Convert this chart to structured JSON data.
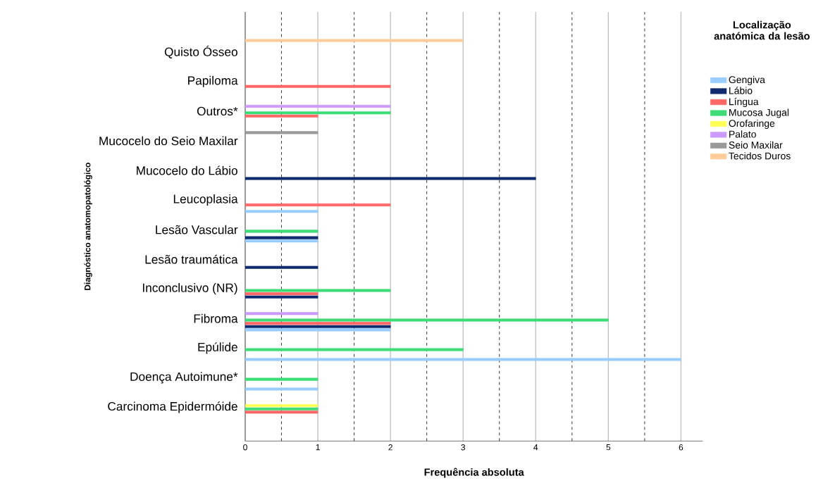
{
  "chart_data": {
    "type": "bar",
    "orientation": "horizontal",
    "xlabel": "Frequência absoluta",
    "ylabel": "Diagnóstico anatomopatológico",
    "legend_title": "Localização anatómica da lesão",
    "categories": [
      "Quisto Ósseo",
      "Papiloma",
      "Outros*",
      "Mucocelo do Seio Maxilar",
      "Mucocelo do Lábio",
      "Leucoplasia",
      "Lesão Vascular",
      "Lesão traumática",
      "Inconclusivo (NR)",
      "Fibroma",
      "Epúlide",
      "Doença Autoimune*",
      "Carcinoma Epidermóide"
    ],
    "series": [
      {
        "name": "Gengiva",
        "color": "#99ccff",
        "values": [
          null,
          null,
          null,
          null,
          null,
          1,
          1,
          null,
          null,
          2,
          6,
          1,
          null
        ]
      },
      {
        "name": "Lábio",
        "color": "#0f2a6e",
        "values": [
          null,
          null,
          null,
          null,
          4,
          null,
          1,
          1,
          1,
          2,
          null,
          null,
          null
        ]
      },
      {
        "name": "Língua",
        "color": "#ff6666",
        "values": [
          null,
          2,
          1,
          null,
          null,
          2,
          null,
          null,
          1,
          2,
          null,
          null,
          1
        ]
      },
      {
        "name": "Mucosa Jugal",
        "color": "#3ddc77",
        "values": [
          null,
          null,
          2,
          null,
          null,
          null,
          1,
          null,
          2,
          5,
          3,
          1,
          1
        ]
      },
      {
        "name": "Orofaringe",
        "color": "#ffff55",
        "values": [
          null,
          null,
          null,
          null,
          null,
          null,
          null,
          null,
          null,
          null,
          null,
          null,
          1
        ]
      },
      {
        "name": "Palato",
        "color": "#cc99ff",
        "values": [
          null,
          null,
          2,
          null,
          null,
          null,
          null,
          null,
          null,
          1,
          null,
          null,
          null
        ]
      },
      {
        "name": "Seio Maxilar",
        "color": "#999999",
        "values": [
          null,
          null,
          null,
          1,
          null,
          null,
          null,
          null,
          null,
          null,
          null,
          null,
          null
        ]
      },
      {
        "name": "Tecidos Duros",
        "color": "#ffcc99",
        "values": [
          3,
          null,
          null,
          null,
          null,
          null,
          null,
          null,
          null,
          null,
          null,
          null,
          null
        ]
      }
    ],
    "xlim": [
      0,
      6.3
    ],
    "xticks": [
      0,
      1,
      2,
      3,
      4,
      5,
      6
    ],
    "grid": "x",
    "legend": "right"
  }
}
